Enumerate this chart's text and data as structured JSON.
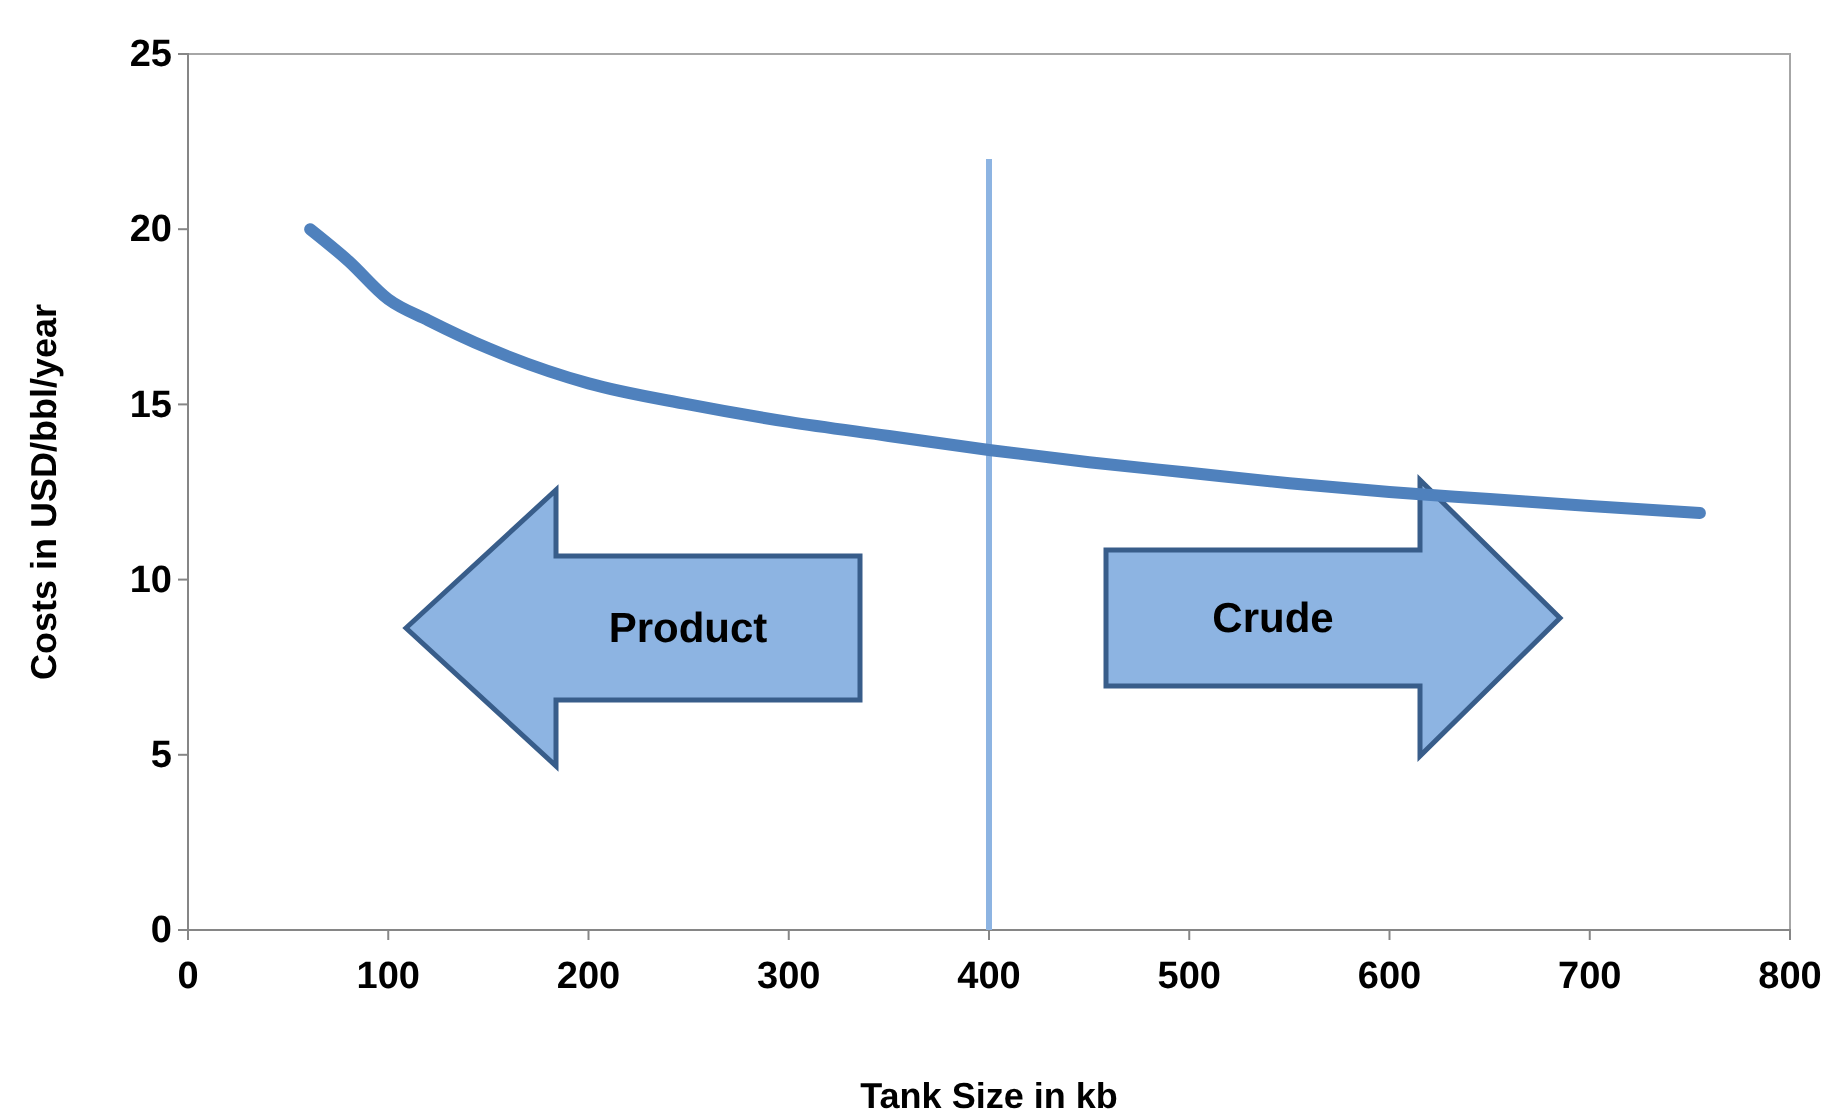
{
  "chart_data": {
    "type": "line",
    "xlabel": "Tank Size in kb",
    "ylabel": "Costs in USD/bbl/year",
    "x": [
      61,
      80,
      100,
      120,
      150,
      200,
      250,
      300,
      350,
      400,
      450,
      500,
      550,
      600,
      650,
      700,
      755
    ],
    "series": [
      {
        "color": "#4f81bd",
        "values": [
          20.0,
          19.1,
          18.0,
          17.4,
          16.6,
          15.6,
          15.0,
          14.5,
          14.1,
          13.7,
          13.35,
          13.05,
          12.75,
          12.5,
          12.3,
          12.1,
          11.9
        ]
      }
    ],
    "xlim": [
      0,
      800
    ],
    "xticks": [
      0,
      100,
      200,
      300,
      400,
      500,
      600,
      700,
      800
    ],
    "ylim": [
      0,
      25
    ],
    "yticks": [
      0,
      5,
      10,
      15,
      20,
      25
    ],
    "ref_lines": [
      {
        "axis": "x",
        "value": 400,
        "color": "#8db4e2"
      }
    ],
    "annotations": [
      "Product",
      "Crude"
    ],
    "marker": "none",
    "line_style": "solid"
  }
}
